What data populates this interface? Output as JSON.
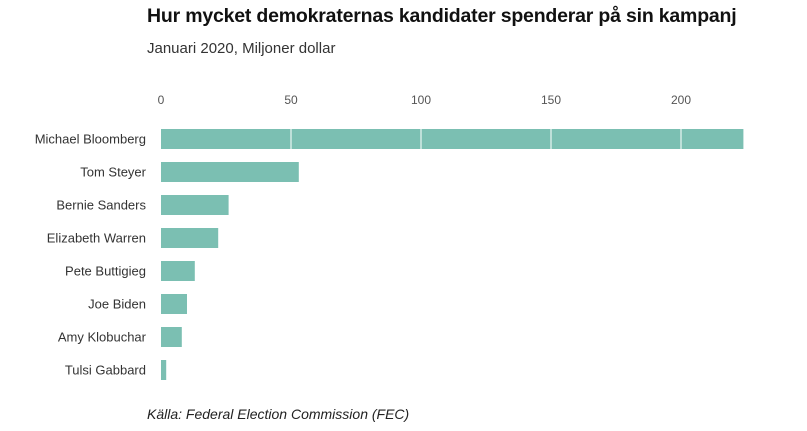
{
  "chart_data": {
    "type": "bar",
    "orientation": "horizontal",
    "title": "Hur mycket demokraternas kandidater spenderar på sin kampanj",
    "subtitle": "Januari 2020, Miljoner dollar",
    "categories": [
      "Michael Bloomberg",
      "Tom Steyer",
      "Bernie Sanders",
      "Elizabeth Warren",
      "Pete Buttigieg",
      "Joe Biden",
      "Amy Klobuchar",
      "Tulsi Gabbard"
    ],
    "values": [
      224,
      53,
      26,
      22,
      13,
      10,
      8,
      2
    ],
    "xticks": [
      0,
      50,
      100,
      150,
      200
    ],
    "xlim": [
      0,
      225
    ],
    "xaxis_position": "top",
    "grid": true,
    "bar_color": "#7bbfb2",
    "source": "Källa: Federal Election Commission (FEC)"
  }
}
